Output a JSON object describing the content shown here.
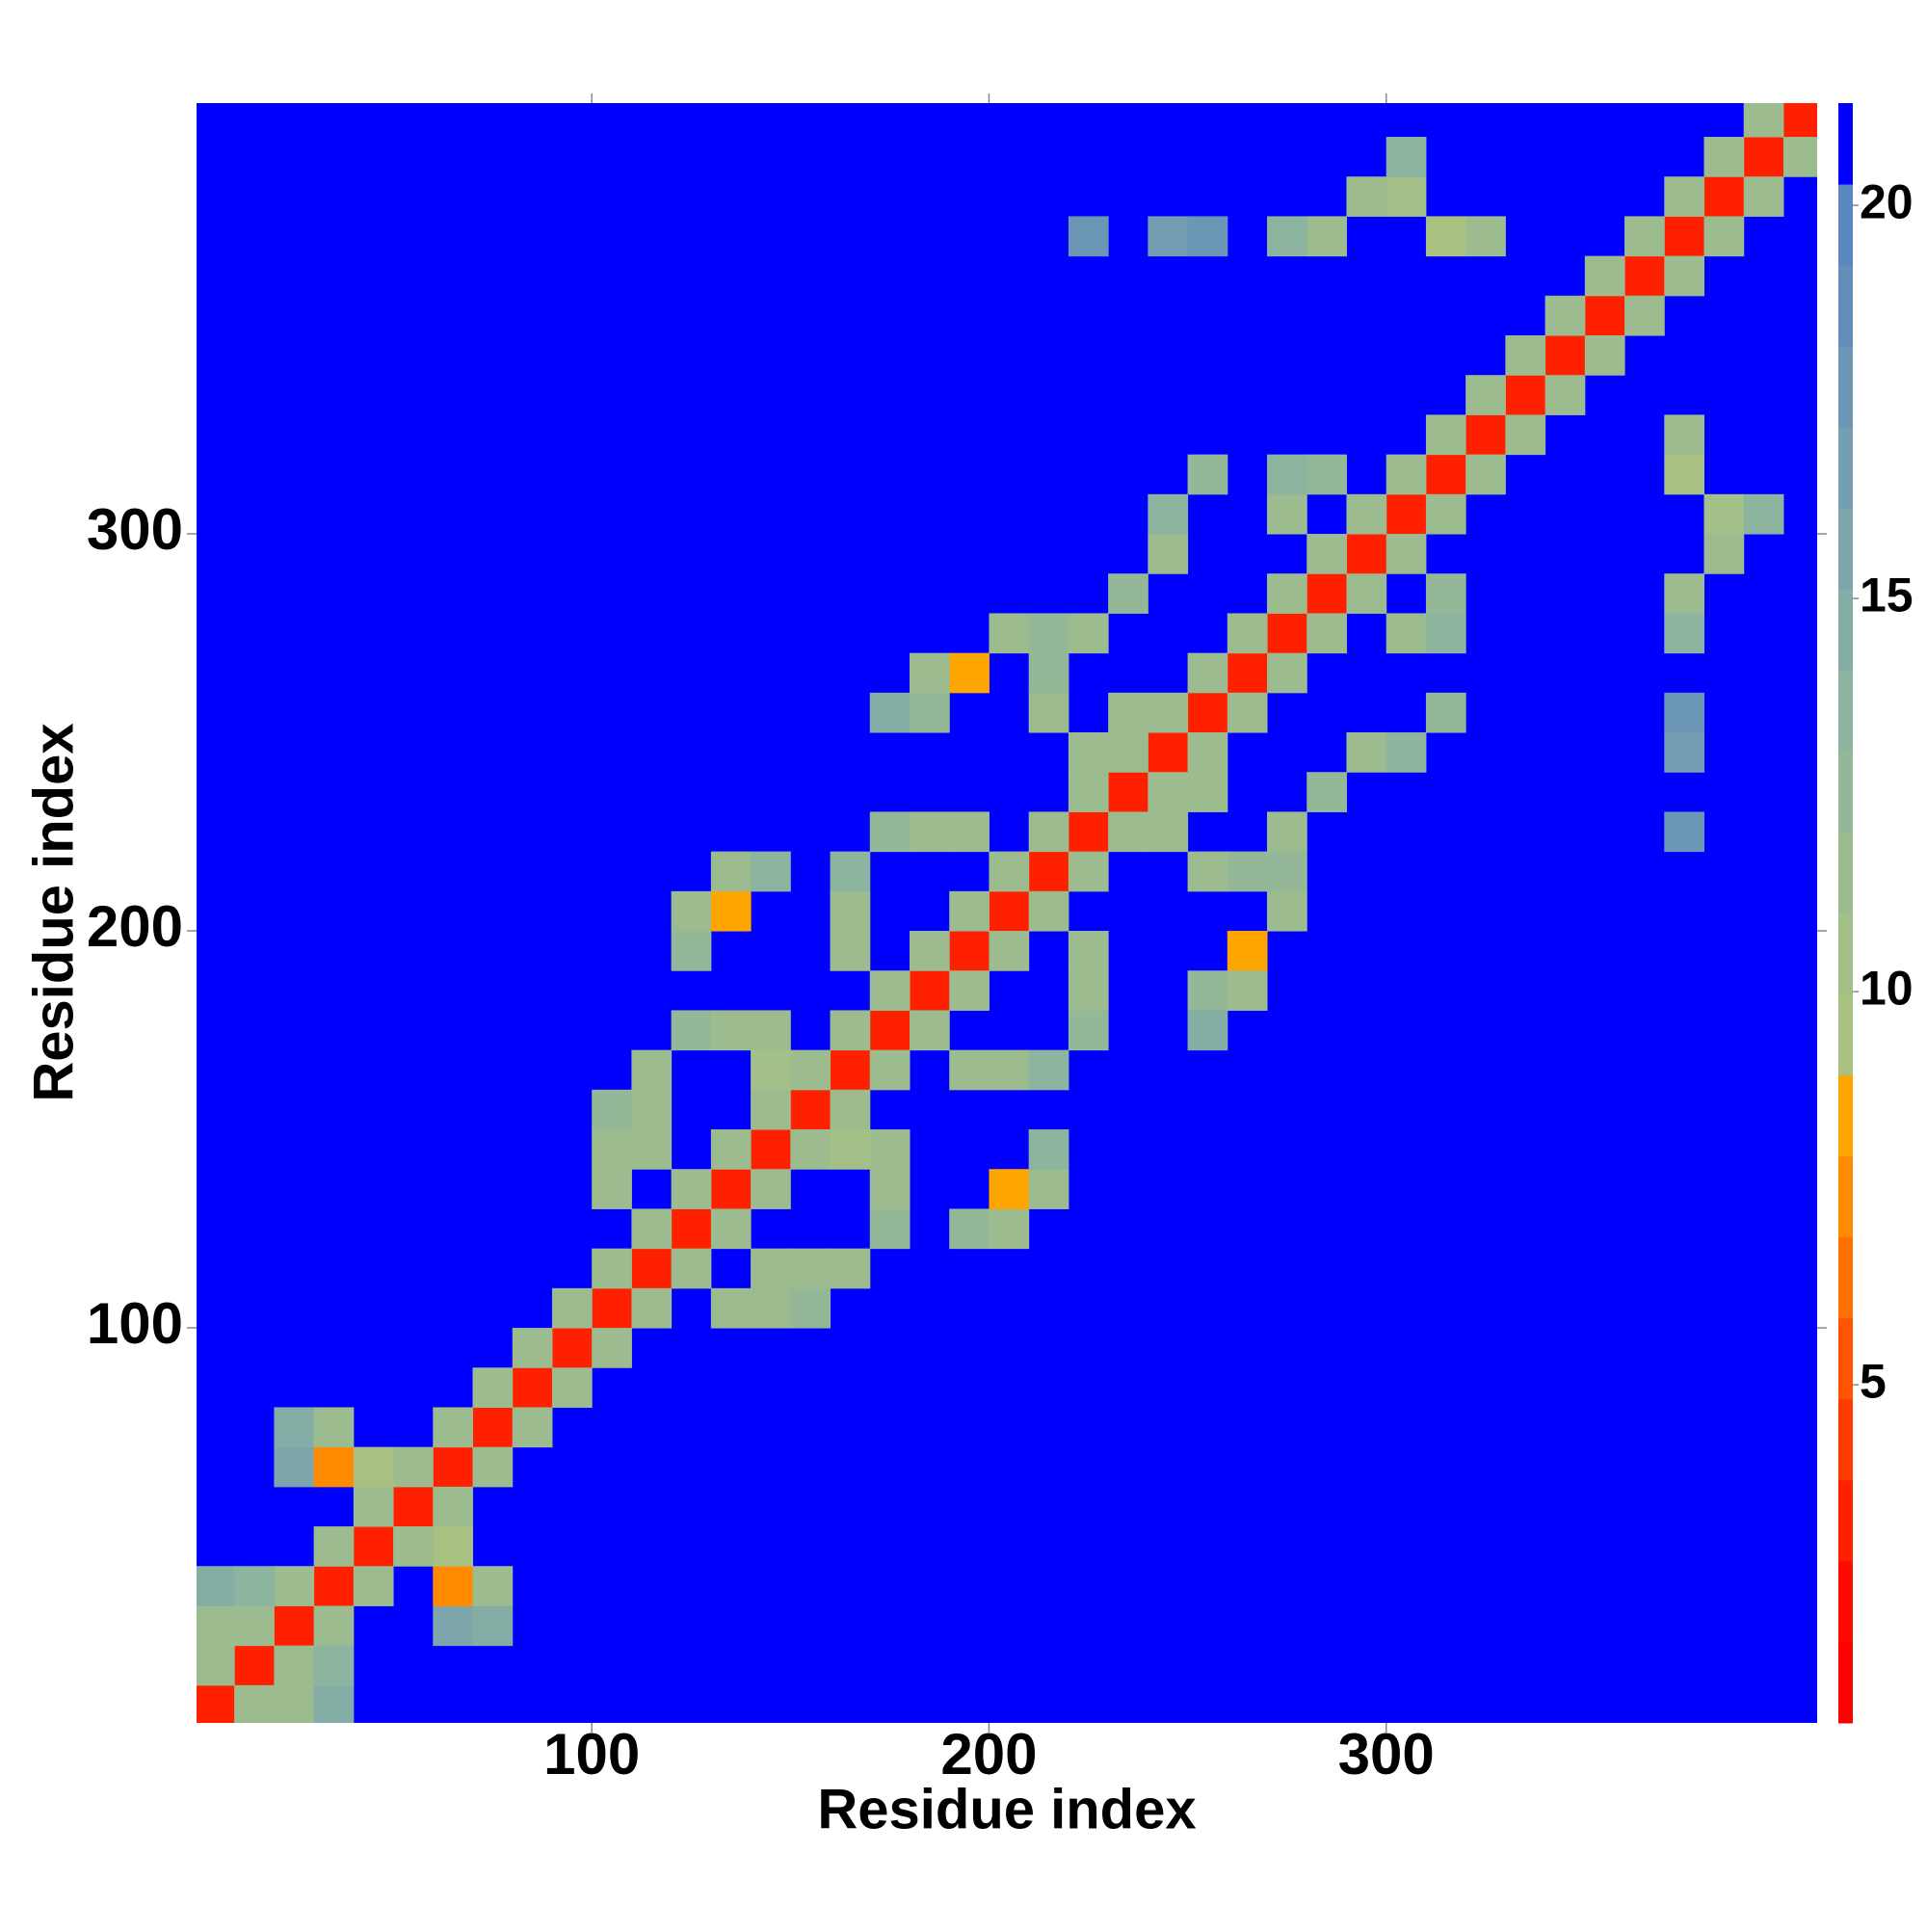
{
  "chart_data": {
    "type": "heatmap",
    "xlabel": "Residue index",
    "ylabel": "Residue index",
    "xlim": [
      0.5,
      408.5
    ],
    "ylim": [
      0.5,
      408.5
    ],
    "xticks": [
      100,
      200,
      300
    ],
    "yticks": [
      100,
      200,
      300
    ],
    "clim": [
      0.7,
      21.3
    ],
    "cticks": [
      5,
      10,
      15,
      20
    ],
    "colors": [
      "#ff0000",
      "#ff0a00",
      "#ff2000",
      "#ff3a00",
      "#ff5500",
      "#ff7000",
      "#ff8a00",
      "#ffa500",
      "#a8c080",
      "#a4c089",
      "#9cbc90",
      "#94b897",
      "#8cb49e",
      "#84aea5",
      "#7ca6ab",
      "#749eb1",
      "#6c96b6",
      "#648eba",
      "#5c86be",
      "#0000ff"
    ],
    "x": [
      5,
      15,
      25,
      35,
      45,
      55,
      65,
      75,
      85,
      95,
      105,
      115,
      125,
      135,
      145,
      155,
      165,
      175,
      185,
      195,
      205,
      215,
      225,
      235,
      245,
      255,
      265,
      275,
      285,
      295,
      305,
      315,
      325,
      335,
      345,
      355,
      365,
      375,
      385,
      395,
      405,
      5,
      15,
      25,
      35,
      45,
      55,
      65,
      75,
      85,
      95,
      105,
      115,
      125,
      135,
      145,
      155,
      165,
      175,
      185,
      195,
      205,
      215,
      225,
      235,
      245,
      255,
      265,
      275,
      285,
      295,
      305,
      315,
      325,
      335,
      345,
      355,
      365,
      375,
      385,
      395,
      15,
      25,
      35,
      45,
      55,
      65,
      75,
      85,
      95,
      105,
      115,
      125,
      135,
      145,
      155,
      165,
      175,
      185,
      195,
      205,
      215,
      225,
      235,
      245,
      255,
      265,
      275,
      285,
      295,
      305,
      315,
      325,
      335,
      345,
      355,
      365,
      375,
      385,
      395,
      405,
      25,
      25,
      35,
      35,
      45,
      5,
      5,
      15,
      105,
      105,
      105,
      115,
      115,
      115,
      125,
      135,
      145,
      145,
      125,
      125,
      135,
      135,
      145,
      165,
      165,
      165,
      175,
      185,
      195,
      185,
      195,
      185,
      205,
      215,
      175,
      215,
      215,
      225,
      235,
      245,
      245,
      255,
      225,
      235,
      275,
      285,
      275,
      325,
      315,
      305,
      305,
      295,
      285,
      275,
      225,
      245,
      255,
      65,
      75,
      65,
      75,
      65,
      25,
      35,
      35,
      135,
      145,
      155,
      145,
      155,
      165,
      175,
      175,
      175,
      165,
      195,
      205,
      205,
      215,
      215,
      195,
      205,
      215,
      225,
      225,
      225,
      255,
      265,
      265,
      275,
      275,
      255,
      255,
      265,
      275,
      285,
      295,
      305,
      315,
      245,
      255,
      305,
      315,
      315,
      375,
      375,
      385,
      395,
      385,
      375,
      375,
      375,
      375,
      375
    ],
    "y": [
      5,
      15,
      25,
      35,
      45,
      55,
      65,
      75,
      85,
      95,
      105,
      115,
      125,
      135,
      145,
      155,
      165,
      175,
      185,
      195,
      205,
      215,
      225,
      235,
      245,
      255,
      265,
      275,
      285,
      295,
      305,
      315,
      325,
      335,
      345,
      355,
      365,
      375,
      385,
      395,
      405,
      15,
      25,
      35,
      45,
      55,
      65,
      75,
      85,
      95,
      105,
      115,
      125,
      135,
      145,
      155,
      165,
      175,
      185,
      195,
      205,
      215,
      225,
      235,
      245,
      255,
      265,
      275,
      285,
      295,
      305,
      315,
      325,
      335,
      345,
      355,
      365,
      375,
      385,
      395,
      405,
      5,
      15,
      25,
      35,
      45,
      55,
      65,
      75,
      85,
      95,
      105,
      115,
      125,
      135,
      145,
      155,
      165,
      175,
      185,
      195,
      205,
      215,
      225,
      235,
      245,
      255,
      265,
      275,
      285,
      295,
      305,
      315,
      325,
      335,
      345,
      355,
      365,
      375,
      385,
      395,
      65,
      75,
      65,
      75,
      65,
      25,
      35,
      35,
      135,
      145,
      155,
      145,
      155,
      165,
      175,
      175,
      175,
      165,
      195,
      205,
      205,
      215,
      215,
      195,
      205,
      215,
      225,
      225,
      225,
      255,
      265,
      265,
      275,
      275,
      255,
      255,
      265,
      275,
      285,
      295,
      305,
      315,
      245,
      255,
      305,
      315,
      315,
      375,
      375,
      385,
      395,
      385,
      375,
      375,
      375,
      375,
      375,
      25,
      25,
      35,
      35,
      45,
      5,
      5,
      15,
      105,
      105,
      105,
      115,
      115,
      115,
      125,
      135,
      145,
      145,
      125,
      125,
      135,
      135,
      145,
      165,
      165,
      165,
      175,
      185,
      195,
      185,
      195,
      185,
      205,
      215,
      175,
      215,
      215,
      225,
      235,
      245,
      245,
      255,
      225,
      235,
      275,
      285,
      275,
      325,
      315,
      305,
      305,
      295,
      285,
      275,
      225,
      245,
      255
    ],
    "values": [
      3,
      3,
      3,
      3,
      3,
      3,
      3,
      3,
      3,
      3,
      3,
      3,
      3,
      3,
      3,
      3,
      3,
      3,
      3,
      3,
      3,
      3,
      3,
      3,
      3,
      3,
      3,
      3,
      3,
      3,
      3,
      3,
      3,
      3,
      3,
      3,
      3,
      3,
      3,
      3,
      3,
      12,
      12,
      12,
      12,
      12,
      12,
      12,
      12,
      12,
      12,
      12,
      12,
      12,
      12,
      12,
      12,
      12,
      12,
      12,
      12,
      12,
      12,
      12,
      12,
      12,
      12,
      12,
      12,
      12,
      12,
      12,
      12,
      12,
      12,
      12,
      12,
      12,
      12,
      12,
      12,
      12,
      12,
      12,
      12,
      12,
      12,
      12,
      12,
      12,
      12,
      12,
      12,
      12,
      12,
      12,
      12,
      12,
      12,
      12,
      12,
      12,
      12,
      12,
      12,
      12,
      12,
      12,
      12,
      12,
      12,
      12,
      12,
      12,
      12,
      12,
      12,
      12,
      12,
      12,
      12,
      16,
      15,
      7,
      12,
      9,
      12,
      15,
      14,
      12,
      11,
      13,
      11,
      12,
      12,
      13,
      11,
      12,
      10,
      13,
      11,
      8,
      12,
      14,
      12,
      12,
      14,
      13,
      12,
      11,
      13,
      8,
      12,
      12,
      13,
      15,
      12,
      13,
      12,
      13,
      12,
      14,
      13,
      11,
      12,
      12,
      13,
      14,
      12,
      9,
      10,
      14,
      12,
      11,
      14,
      18,
      17,
      18,
      16,
      15,
      7,
      12,
      9,
      12,
      15,
      14,
      12,
      11,
      13,
      11,
      12,
      12,
      13,
      11,
      12,
      10,
      13,
      11,
      8,
      12,
      14,
      12,
      12,
      14,
      13,
      12,
      11,
      13,
      8,
      12,
      12,
      13,
      15,
      12,
      13,
      12,
      13,
      12,
      14,
      13,
      11,
      12,
      12,
      13,
      14,
      12,
      9,
      10,
      14,
      12,
      11,
      14,
      18,
      17,
      18
    ]
  }
}
